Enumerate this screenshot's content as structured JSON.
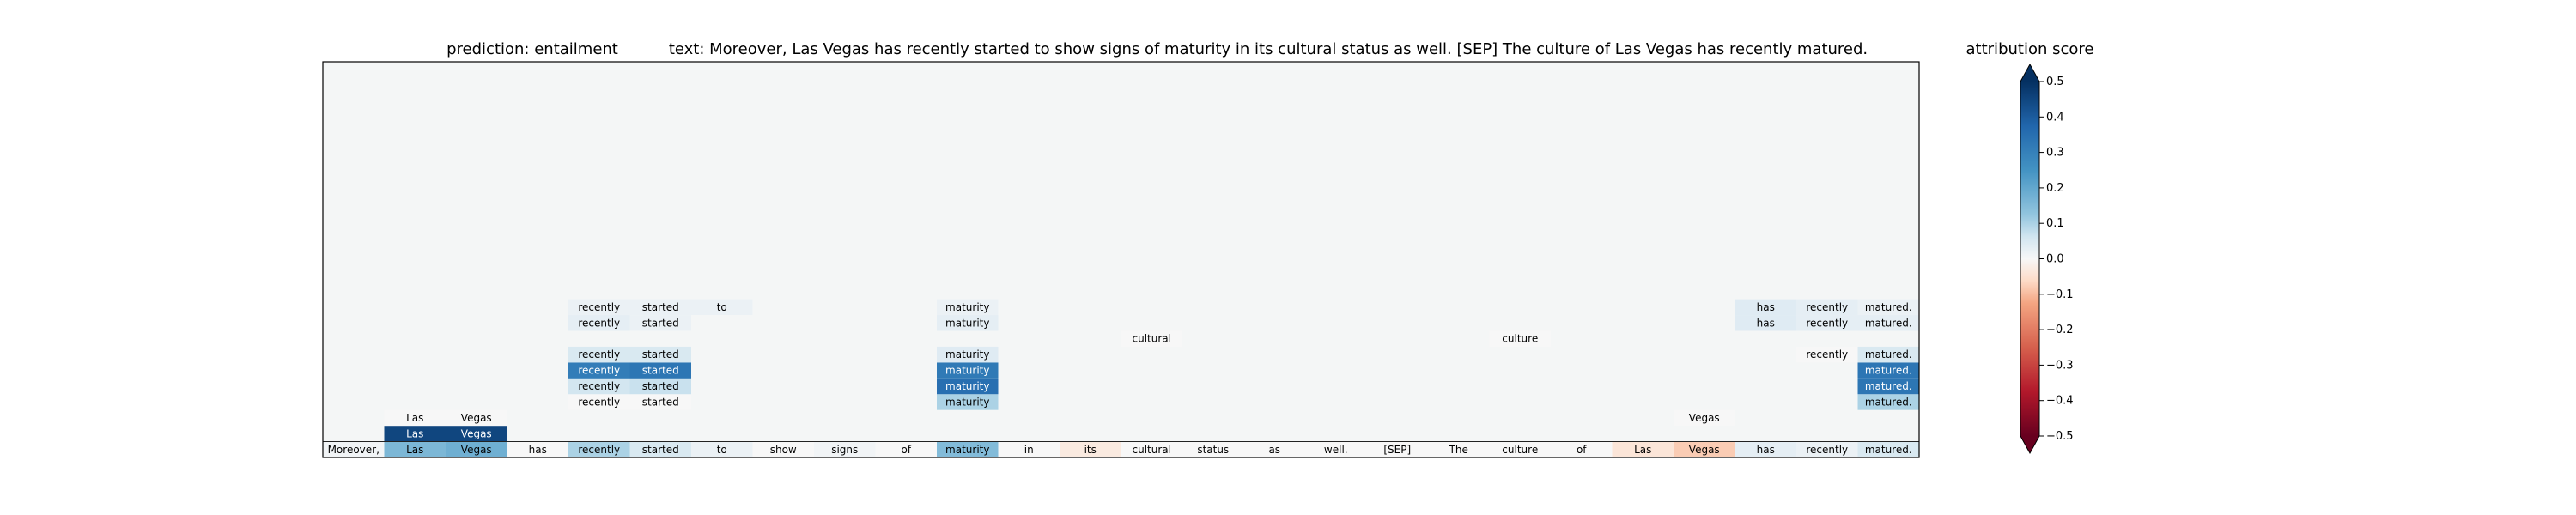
{
  "chart_data": {
    "type": "heatmap",
    "title": {
      "prediction": "prediction:  entailment",
      "text": "text:  Moreover, Las Vegas has recently started to show signs of maturity in its cultural status as well. [SEP] The culture of Las Vegas has recently matured."
    },
    "tokens": [
      "Moreover,",
      "Las",
      "Vegas",
      "has",
      "recently",
      "started",
      "to",
      "show",
      "signs",
      "of",
      "maturity",
      "in",
      "its",
      "cultural",
      "status",
      "as",
      "well.",
      "[SEP]",
      "The",
      "culture",
      "of",
      "Las",
      "Vegas",
      "has",
      "recently",
      "matured."
    ],
    "total_rows": 25,
    "bottom_row": [
      0.01,
      0.16,
      0.18,
      0.0,
      0.1,
      0.05,
      0.02,
      0.0,
      0.01,
      0.0,
      0.15,
      0.0,
      -0.03,
      0.0,
      0.0,
      0.0,
      0.0,
      0.0,
      0.0,
      0.0,
      0.0,
      -0.04,
      -0.08,
      0.03,
      0.02,
      0.05
    ],
    "upper_rows": [
      {
        "row": 1,
        "cells": [
          [
            1,
            0.45
          ],
          [
            2,
            0.45
          ]
        ]
      },
      {
        "row": 2,
        "cells": [
          [
            1,
            0.0
          ],
          [
            2,
            0.0
          ],
          [
            22,
            0.0
          ]
        ]
      },
      {
        "row": 3,
        "cells": [
          [
            4,
            0.0
          ],
          [
            5,
            0.0
          ],
          [
            10,
            0.1
          ],
          [
            25,
            0.1
          ]
        ]
      },
      {
        "row": 4,
        "cells": [
          [
            4,
            0.06
          ],
          [
            5,
            0.07
          ],
          [
            10,
            0.35
          ],
          [
            25,
            0.33
          ]
        ]
      },
      {
        "row": 5,
        "cells": [
          [
            4,
            0.31
          ],
          [
            5,
            0.33
          ],
          [
            10,
            0.32
          ],
          [
            25,
            0.33
          ]
        ]
      },
      {
        "row": 6,
        "cells": [
          [
            4,
            0.05
          ],
          [
            5,
            0.05
          ],
          [
            10,
            0.04
          ],
          [
            24,
            0.0
          ],
          [
            25,
            0.05
          ]
        ]
      },
      {
        "row": 7,
        "cells": [
          [
            13,
            0.0
          ],
          [
            19,
            0.0
          ]
        ]
      },
      {
        "row": 8,
        "cells": [
          [
            4,
            0.03
          ],
          [
            5,
            0.02
          ],
          [
            10,
            0.03
          ],
          [
            23,
            0.04
          ],
          [
            24,
            0.03
          ],
          [
            25,
            0.03
          ]
        ]
      },
      {
        "row": 9,
        "cells": [
          [
            4,
            0.02
          ],
          [
            5,
            0.02
          ],
          [
            6,
            0.02
          ],
          [
            10,
            0.02
          ],
          [
            23,
            0.04
          ],
          [
            24,
            0.03
          ],
          [
            25,
            0.02
          ]
        ]
      }
    ],
    "colorbar": {
      "label": "attribution score",
      "ticks": [
        "0.5",
        "0.4",
        "0.3",
        "0.2",
        "0.1",
        "0.0",
        "−0.1",
        "−0.2",
        "−0.3",
        "−0.4",
        "−0.5"
      ],
      "range": [
        -0.5,
        0.5
      ],
      "colormap": "RdBu"
    },
    "background_color": "#f4f6f6"
  }
}
